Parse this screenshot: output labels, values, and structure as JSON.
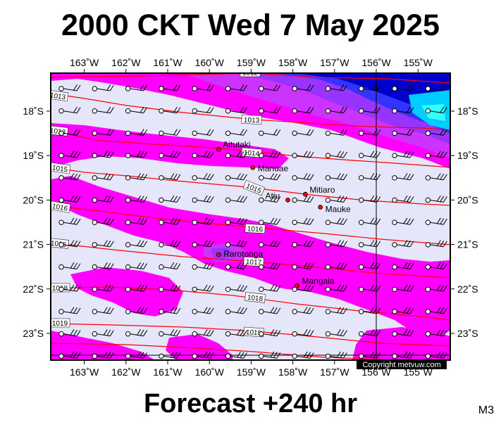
{
  "header": {
    "title": "2000 CKT Wed 7 May 2025"
  },
  "footer": {
    "forecast": "Forecast +240 hr",
    "model": "M3"
  },
  "map": {
    "lon_labels": [
      "163˚W",
      "162˚W",
      "161˚W",
      "160˚W",
      "159˚W",
      "158˚W",
      "157˚W",
      "156˚W",
      "155˚W"
    ],
    "lat_labels": [
      "18˚S",
      "19˚S",
      "20˚S",
      "21˚S",
      "22˚S",
      "23˚S"
    ],
    "places": [
      {
        "name": "Aitutaki",
        "lon": -159.78,
        "lat": -18.86
      },
      {
        "name": "Manuae",
        "lon": -158.96,
        "lat": -19.27
      },
      {
        "name": "Atiu",
        "lon": -158.12,
        "lat": -20.0
      },
      {
        "name": "Mitiaro",
        "lon": -157.7,
        "lat": -19.87
      },
      {
        "name": "Mauke",
        "lon": -157.34,
        "lat": -20.16
      },
      {
        "name": "Rarotonga",
        "lon": -159.78,
        "lat": -21.23
      },
      {
        "name": "Mangaia",
        "lon": -157.9,
        "lat": -21.93
      }
    ],
    "isobar_labels": [
      "1012",
      "1013",
      "1013",
      "1014",
      "1015",
      "1016",
      "1016",
      "1016",
      "1017",
      "1018",
      "1018",
      "1019",
      "1019",
      "1013",
      "1015"
    ],
    "copyright": "Copyright metvuw.com",
    "colors": {
      "background": "#e6e6fa",
      "magenta": "#ff00ff",
      "violet": "#cc33ff",
      "purple": "#9933ff",
      "blue": "#3333ff",
      "deep_blue": "#0000cc",
      "cyan": "#00ccff",
      "isobar": "#ff0000"
    }
  }
}
